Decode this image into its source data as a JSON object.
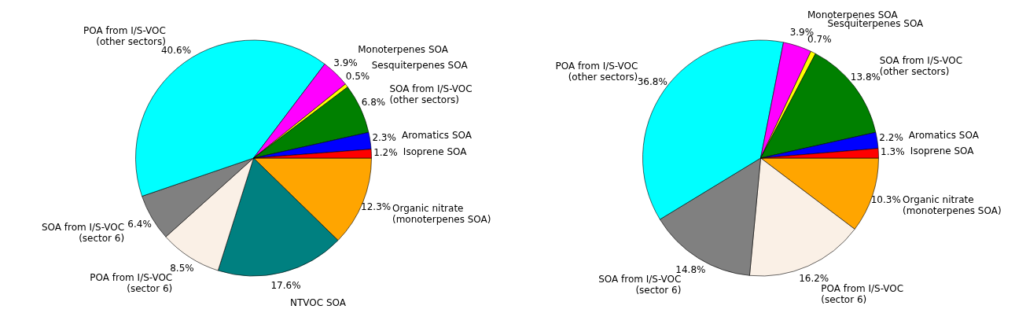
{
  "chart_data": [
    {
      "type": "pie",
      "categories": [
        "Isoprene SOA",
        "Aromatics SOA",
        "SOA from I/S-VOC\n(other sectors)",
        "Sesquiterpenes SOA",
        "Monoterpenes SOA",
        "POA from I/S-VOC\n(other sectors)",
        "SOA from I/S-VOC\n(sector 6)",
        "POA from I/S-VOC\n(sector 6)",
        "NTVOC SOA",
        "Organic nitrate\n(monoterpenes SOA)"
      ],
      "values": [
        1.2,
        2.3,
        6.8,
        0.5,
        3.9,
        40.6,
        6.4,
        8.5,
        17.6,
        12.3
      ],
      "value_labels": [
        "1.2%",
        "2.3%",
        "6.8%",
        "0.5%",
        "3.9%",
        "40.6%",
        "6.4%",
        "8.5%",
        "17.6%",
        "12.3%"
      ],
      "colors": [
        "#ff0000",
        "#0000ff",
        "#008000",
        "#ffff00",
        "#ff00ff",
        "#00ffff",
        "#808080",
        "#faf0e6",
        "#008080",
        "#ffa500"
      ]
    },
    {
      "type": "pie",
      "categories": [
        "Isoprene SOA",
        "Aromatics SOA",
        "SOA from I/S-VOC\n(other sectors)",
        "Sesquiterpenes SOA",
        "Monoterpenes SOA",
        "POA from I/S-VOC\n(other sectors)",
        "SOA from I/S-VOC\n(sector 6)",
        "POA from I/S-VOC\n(sector 6)",
        "Organic nitrate\n(monoterpenes SOA)"
      ],
      "values": [
        1.3,
        2.2,
        13.8,
        0.7,
        3.9,
        36.8,
        14.8,
        16.2,
        10.3
      ],
      "value_labels": [
        "1.3%",
        "2.2%",
        "13.8%",
        "0.7%",
        "3.9%",
        "36.8%",
        "14.8%",
        "16.2%",
        "10.3%"
      ],
      "colors": [
        "#ff0000",
        "#0000ff",
        "#008000",
        "#ffff00",
        "#ff00ff",
        "#00ffff",
        "#808080",
        "#faf0e6",
        "#ffa500"
      ]
    }
  ]
}
